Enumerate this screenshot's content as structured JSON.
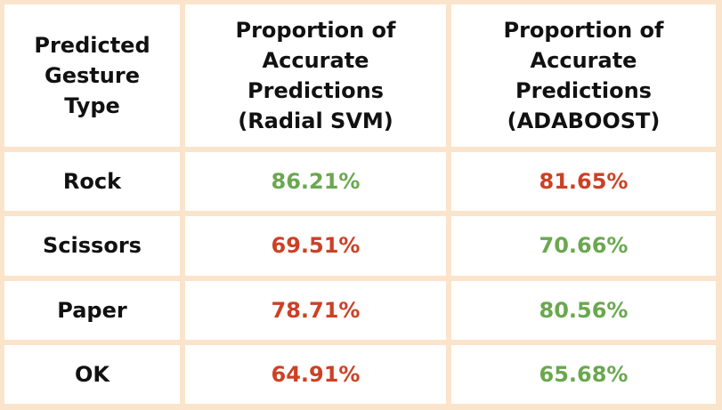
{
  "colors": {
    "border": "#fbe4cc",
    "cell_bg": "#ffffff",
    "text": "#111111",
    "good": "#6aa84f",
    "bad": "#cc4125"
  },
  "header": {
    "col1": [
      "Predicted",
      "Gesture",
      "Type"
    ],
    "col2": [
      "Proportion of",
      "Accurate",
      "Predictions",
      "(Radial SVM)"
    ],
    "col3": [
      "Proportion of",
      "Accurate",
      "Predictions",
      "(ADABOOST)"
    ]
  },
  "rows": [
    {
      "gesture": "Rock",
      "svm": "86.21%",
      "svm_color": "good",
      "ada": "81.65%",
      "ada_color": "bad"
    },
    {
      "gesture": "Scissors",
      "svm": "69.51%",
      "svm_color": "bad",
      "ada": "70.66%",
      "ada_color": "good"
    },
    {
      "gesture": "Paper",
      "svm": "78.71%",
      "svm_color": "bad",
      "ada": "80.56%",
      "ada_color": "good"
    },
    {
      "gesture": "OK",
      "svm": "64.91%",
      "svm_color": "bad",
      "ada": "65.68%",
      "ada_color": "good"
    }
  ]
}
